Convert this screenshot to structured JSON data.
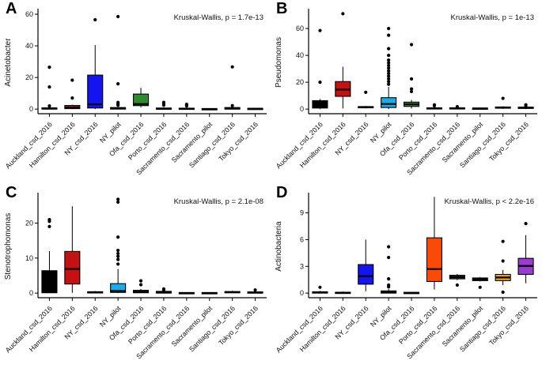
{
  "figure": {
    "background": "#ffffff",
    "panel_count": 4
  },
  "chart_data": {
    "type": "boxplot",
    "layout": "2x2-grid",
    "grid": "off",
    "legend_position": "none",
    "categories": [
      "Auckland_csd_2016",
      "Hamilton_csd_2016",
      "NY_csd_2016",
      "NY_pilot",
      "Ofa_csd_2016",
      "Porto_csd_2016",
      "Sacramento_csd_2016",
      "Sacramento_pilot",
      "Santiago_csd_2016",
      "Tokyo_csd_2016"
    ],
    "colors": [
      "#000000",
      "#C51111",
      "#1414F0",
      "#18ACE8",
      "#2F8B2F",
      "#FB4A07",
      "#3D3D3D",
      "#0F0F0F",
      "#EDA120",
      "#9C3BD4"
    ],
    "axis_color": "#000000",
    "point_color": "#000000",
    "panels": [
      {
        "label": "A",
        "ylabel": "Acinetobacter",
        "annotation": "Kruskal-Wallis, p = 1.7e-13",
        "ylim": [
          0,
          62
        ],
        "yticks": [
          0,
          20,
          40,
          60
        ],
        "boxes": [
          {
            "whislo": 0,
            "q1": 0,
            "med": 0.3,
            "q3": 0.8,
            "whishi": 1.2,
            "outliers": [
              2.0,
              14.0,
              26.5
            ]
          },
          {
            "whislo": 0,
            "q1": 0.3,
            "med": 1.0,
            "q3": 2.3,
            "whishi": 2.8,
            "outliers": [
              7.0,
              18.3
            ]
          },
          {
            "whislo": 0,
            "q1": 0.7,
            "med": 3.0,
            "q3": 21.5,
            "whishi": 40.5,
            "outliers": [
              56.5
            ]
          },
          {
            "whislo": 0,
            "q1": 0,
            "med": 0.4,
            "q3": 1.0,
            "whishi": 1.6,
            "outliers": [
              2.5,
              3.3,
              4.2,
              16.0,
              58.5
            ]
          },
          {
            "whislo": 1.0,
            "q1": 2.2,
            "med": 3.2,
            "q3": 9.5,
            "whishi": 13.5,
            "outliers": []
          },
          {
            "whislo": 0,
            "q1": 0,
            "med": 0.2,
            "q3": 0.7,
            "whishi": 1.2,
            "outliers": [
              2.5,
              3.2,
              4.3
            ]
          },
          {
            "whislo": 0,
            "q1": 0,
            "med": 0.2,
            "q3": 0.6,
            "whishi": 1.0,
            "outliers": [
              2.0,
              3.0
            ]
          },
          {
            "whislo": 0,
            "q1": 0,
            "med": 0.1,
            "q3": 0.3,
            "whishi": 0.5,
            "outliers": []
          },
          {
            "whislo": 0,
            "q1": 0,
            "med": 0.3,
            "q3": 1.0,
            "whishi": 1.5,
            "outliers": [
              2.2,
              26.7
            ]
          },
          {
            "whislo": 0,
            "q1": 0,
            "med": 0.2,
            "q3": 0.5,
            "whishi": 0.8,
            "outliers": []
          }
        ]
      },
      {
        "label": "B",
        "ylabel": "Pseudomonas",
        "annotation": "Kruskal-Wallis, p = 1e-13",
        "ylim": [
          0,
          73
        ],
        "yticks": [
          0,
          20,
          40,
          60
        ],
        "boxes": [
          {
            "whislo": 0,
            "q1": 0.8,
            "med": 1.8,
            "q3": 6.3,
            "whishi": 7.5,
            "outliers": [
              20.0,
              58.5
            ]
          },
          {
            "whislo": 0.5,
            "q1": 9.5,
            "med": 14.5,
            "q3": 20.5,
            "whishi": 31.5,
            "outliers": [
              71.0
            ]
          },
          {
            "whislo": 0.5,
            "q1": 1.0,
            "med": 1.4,
            "q3": 1.9,
            "whishi": 2.4,
            "outliers": [
              12.5
            ]
          },
          {
            "whislo": 0,
            "q1": 1.2,
            "med": 3.8,
            "q3": 8.5,
            "whishi": 16.5,
            "outliers": [
              18.5,
              20.5,
              22.5,
              24.5,
              26.5,
              28.5,
              30.5,
              32.5,
              34.5,
              36.5,
              40.0,
              45.0,
              55.0,
              60.0
            ]
          },
          {
            "whislo": 0.5,
            "q1": 2.0,
            "med": 3.6,
            "q3": 5.2,
            "whishi": 6.8,
            "outliers": [
              13.0,
              15.0,
              22.5,
              48.0
            ]
          },
          {
            "whislo": 0,
            "q1": 0.2,
            "med": 0.6,
            "q3": 1.0,
            "whishi": 1.5,
            "outliers": [
              2.5,
              3.2
            ]
          },
          {
            "whislo": 0,
            "q1": 0.2,
            "med": 0.6,
            "q3": 1.0,
            "whishi": 1.4,
            "outliers": [
              1.9
            ]
          },
          {
            "whislo": 0,
            "q1": 0.2,
            "med": 0.5,
            "q3": 0.8,
            "whishi": 1.1,
            "outliers": []
          },
          {
            "whislo": 0.2,
            "q1": 0.8,
            "med": 1.2,
            "q3": 1.6,
            "whishi": 2.1,
            "outliers": [
              8.0
            ]
          },
          {
            "whislo": 0,
            "q1": 0.5,
            "med": 1.0,
            "q3": 1.5,
            "whishi": 2.0,
            "outliers": [
              2.6,
              3.2
            ]
          }
        ]
      },
      {
        "label": "C",
        "ylabel": "Stenotrophomonas",
        "annotation": "Kruskal-Wallis, p = 2.1e-08",
        "ylim": [
          0,
          28
        ],
        "yticks": [
          0,
          10,
          20
        ],
        "boxes": [
          {
            "whislo": 0,
            "q1": 0.1,
            "med": 0.8,
            "q3": 6.4,
            "whishi": 12.0,
            "outliers": [
              19.0,
              20.5,
              21.0
            ]
          },
          {
            "whislo": 0.1,
            "q1": 2.6,
            "med": 6.9,
            "q3": 11.9,
            "whishi": 24.8,
            "outliers": []
          },
          {
            "whislo": 0,
            "q1": 0.1,
            "med": 0.25,
            "q3": 0.4,
            "whishi": 0.6,
            "outliers": []
          },
          {
            "whislo": 0,
            "q1": 0.2,
            "med": 0.6,
            "q3": 2.7,
            "whishi": 6.9,
            "outliers": [
              8.3,
              9.6,
              10.5,
              11.3,
              12.2,
              16.0,
              26.0,
              26.8
            ]
          },
          {
            "whislo": 0,
            "q1": 0.1,
            "med": 0.4,
            "q3": 0.8,
            "whishi": 1.2,
            "outliers": [
              2.4,
              3.5
            ]
          },
          {
            "whislo": 0,
            "q1": 0,
            "med": 0.2,
            "q3": 0.5,
            "whishi": 0.8,
            "outliers": [
              0.9,
              1.2
            ]
          },
          {
            "whislo": 0,
            "q1": 0,
            "med": 0.05,
            "q3": 0.15,
            "whishi": 0.25,
            "outliers": []
          },
          {
            "whislo": 0,
            "q1": 0,
            "med": 0.05,
            "q3": 0.15,
            "whishi": 0.25,
            "outliers": []
          },
          {
            "whislo": 0,
            "q1": 0.1,
            "med": 0.25,
            "q3": 0.45,
            "whishi": 0.7,
            "outliers": []
          },
          {
            "whislo": 0,
            "q1": 0,
            "med": 0.15,
            "q3": 0.35,
            "whishi": 0.55,
            "outliers": [
              0.9
            ]
          }
        ]
      },
      {
        "label": "D",
        "ylabel": "Actinobacteria",
        "annotation": "Kruskal-Wallis, p < 2.2e-16",
        "ylim": [
          0,
          11
        ],
        "yticks": [
          0,
          3,
          6,
          9
        ],
        "boxes": [
          {
            "whislo": 0,
            "q1": 0,
            "med": 0.07,
            "q3": 0.15,
            "whishi": 0.25,
            "outliers": [
              0.65
            ]
          },
          {
            "whislo": 0,
            "q1": 0,
            "med": 0.04,
            "q3": 0.1,
            "whishi": 0.18,
            "outliers": []
          },
          {
            "whislo": 0.2,
            "q1": 1.0,
            "med": 1.9,
            "q3": 3.2,
            "whishi": 6.0,
            "outliers": []
          },
          {
            "whislo": 0,
            "q1": 0,
            "med": 0.1,
            "q3": 0.25,
            "whishi": 0.45,
            "outliers": [
              0.7,
              0.9,
              1.6,
              4.0,
              5.2
            ]
          },
          {
            "whislo": 0,
            "q1": 0,
            "med": 0.03,
            "q3": 0.08,
            "whishi": 0.14,
            "outliers": []
          },
          {
            "whislo": 0.4,
            "q1": 1.3,
            "med": 2.7,
            "q3": 6.2,
            "whishi": 10.8,
            "outliers": []
          },
          {
            "whislo": 1.45,
            "q1": 1.6,
            "med": 1.8,
            "q3": 2.0,
            "whishi": 2.15,
            "outliers": [
              0.9
            ]
          },
          {
            "whislo": 1.3,
            "q1": 1.4,
            "med": 1.55,
            "q3": 1.7,
            "whishi": 1.8,
            "outliers": [
              0.65
            ]
          },
          {
            "whislo": 0.9,
            "q1": 1.4,
            "med": 1.75,
            "q3": 2.1,
            "whishi": 2.6,
            "outliers": [
              0.1,
              3.6,
              5.8
            ]
          },
          {
            "whislo": 1.1,
            "q1": 2.1,
            "med": 3.05,
            "q3": 3.9,
            "whishi": 6.5,
            "outliers": [
              7.8
            ]
          }
        ]
      }
    ]
  }
}
